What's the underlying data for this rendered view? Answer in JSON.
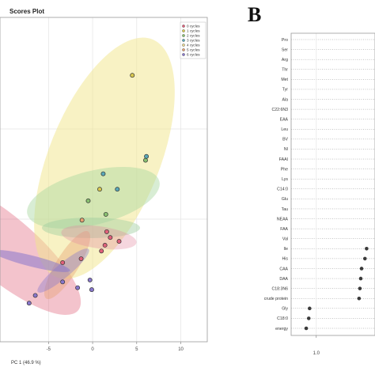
{
  "panel_letter": "B",
  "chart_data": [
    {
      "type": "scatter",
      "title": "Scores Plot",
      "xlabel": "PC 1 (46.9 %)",
      "ylabel": "",
      "xlim": [
        -10.5,
        13
      ],
      "ylim": [
        -7,
        9.8
      ],
      "x_ticks": [
        -5,
        0,
        5,
        10
      ],
      "x_tick_labels": [
        "-5",
        "0",
        "5",
        "10"
      ],
      "y_ticks": [],
      "grid": true,
      "legend_position": "top-right",
      "legend": [
        {
          "label": "0 cycles",
          "color": "#e0607a"
        },
        {
          "label": "1 cycles",
          "color": "#d8c850"
        },
        {
          "label": "2 cycles",
          "color": "#88c070"
        },
        {
          "label": "3 cycles",
          "color": "#5aa8b8"
        },
        {
          "label": "4 cycles",
          "color": "#e8d890"
        },
        {
          "label": "5 cycles",
          "color": "#e6a070"
        },
        {
          "label": "6 cycles",
          "color": "#8877cc"
        }
      ],
      "series": [
        {
          "color": "#e0607a",
          "points": [
            [
              -3.4,
              -2.9
            ],
            [
              -1.3,
              -2.7
            ],
            [
              1.0,
              -2.3
            ],
            [
              1.4,
              -2.0
            ],
            [
              2.0,
              -1.6
            ],
            [
              3.0,
              -1.8
            ],
            [
              1.6,
              -1.3
            ]
          ]
        },
        {
          "color": "#d8c850",
          "points": [
            [
              4.5,
              6.8
            ],
            [
              0.8,
              0.9
            ]
          ]
        },
        {
          "color": "#88c070",
          "points": [
            [
              -0.5,
              0.3
            ],
            [
              6.0,
              2.4
            ],
            [
              1.5,
              -0.4
            ]
          ]
        },
        {
          "color": "#5aa8b8",
          "points": [
            [
              1.2,
              1.7
            ],
            [
              6.1,
              2.6
            ],
            [
              2.8,
              0.9
            ]
          ]
        },
        {
          "color": "#e6a070",
          "points": [
            [
              -1.2,
              -0.7
            ]
          ]
        },
        {
          "color": "#8877cc",
          "points": [
            [
              -3.4,
              -3.9
            ],
            [
              -1.7,
              -4.2
            ],
            [
              -0.3,
              -3.8
            ],
            [
              -0.1,
              -4.3
            ],
            [
              -6.5,
              -4.6
            ],
            [
              -7.2,
              -5.0
            ]
          ]
        }
      ]
    },
    {
      "type": "scatter",
      "subtype": "lollipop",
      "title": "",
      "xlabel": "",
      "xlim": [
        0.85,
        1.35
      ],
      "x_ticks": [
        1.0
      ],
      "x_tick_labels": [
        "1.0"
      ],
      "grid": true,
      "categories": [
        "Pro",
        "Ser",
        "Arg",
        "Thr",
        "Met",
        "Tyr",
        "Ala",
        "C22:6N3",
        "EAA",
        "Leu",
        "BV",
        "NI",
        "FAAI",
        "Phe",
        "Lys",
        "C14:0",
        "Glu",
        "Tau",
        "NEAA",
        "FAA",
        "Val",
        "Ile",
        "His",
        "CAA",
        "DAA",
        "C18:3N6",
        "crude protein",
        "Gly",
        "C18:0",
        "energy"
      ],
      "values": [
        null,
        null,
        null,
        null,
        null,
        null,
        null,
        null,
        null,
        null,
        null,
        null,
        null,
        null,
        null,
        null,
        null,
        null,
        null,
        null,
        null,
        1.3,
        1.29,
        1.27,
        1.265,
        1.26,
        1.255,
        0.96,
        0.955,
        0.94
      ]
    }
  ]
}
